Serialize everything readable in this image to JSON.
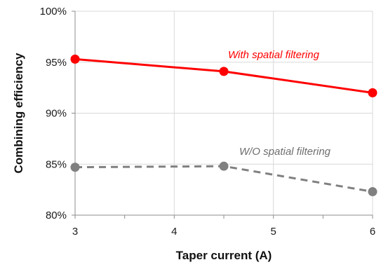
{
  "chart_data": {
    "type": "line",
    "title": "",
    "xlabel": "Taper current (A)",
    "ylabel": "Combining efficiency",
    "xlim": [
      3,
      6
    ],
    "ylim": [
      80,
      100
    ],
    "x_ticks": [
      3,
      4,
      5,
      6
    ],
    "x_tick_labels": [
      "3",
      "4",
      "5",
      "6"
    ],
    "y_ticks": [
      80,
      85,
      90,
      95,
      100
    ],
    "y_tick_labels": [
      "80%",
      "85%",
      "90%",
      "95%",
      "100%"
    ],
    "grid": true,
    "legend": "none",
    "series": [
      {
        "name": "With spatial filtering",
        "color": "#ff0000",
        "dash": "solid",
        "x": [
          3,
          4.5,
          6
        ],
        "values": [
          95.3,
          94.1,
          92.0
        ]
      },
      {
        "name": "W/O spatial filtering",
        "color": "#808080",
        "dash": "dashed",
        "x": [
          3,
          4.5,
          6
        ],
        "values": [
          84.7,
          84.8,
          82.3
        ]
      }
    ]
  }
}
